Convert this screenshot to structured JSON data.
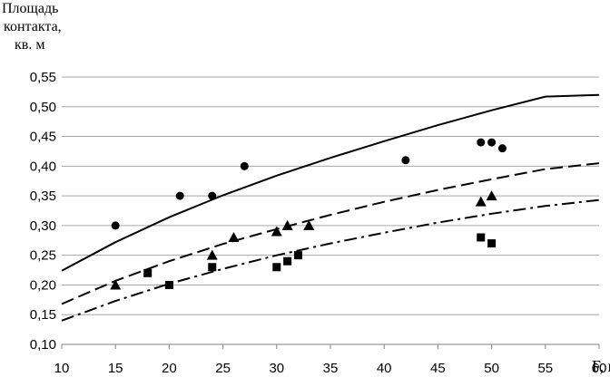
{
  "chart_data": {
    "type": "scatter",
    "title": "",
    "ylabel_lines": [
      "Площадь",
      "контакта,",
      "кв. м"
    ],
    "xlabel": "F, кН",
    "xlim": [
      10,
      60
    ],
    "ylim": [
      0.1,
      0.55
    ],
    "xticks": [
      "10",
      "15",
      "20",
      "25",
      "30",
      "35",
      "40",
      "45",
      "50",
      "55",
      "60"
    ],
    "yticks": [
      "0,10",
      "0,15",
      "0,20",
      "0,25",
      "0,30",
      "0,35",
      "0,40",
      "0,45",
      "0,50",
      "0,55"
    ],
    "grid": true,
    "series": [
      {
        "marker": "circle",
        "points": [
          [
            15,
            0.3
          ],
          [
            21,
            0.35
          ],
          [
            24,
            0.35
          ],
          [
            27,
            0.4
          ],
          [
            42,
            0.41
          ],
          [
            49,
            0.44
          ],
          [
            50,
            0.44
          ],
          [
            51,
            0.43
          ]
        ]
      },
      {
        "marker": "triangle",
        "points": [
          [
            15,
            0.2
          ],
          [
            24,
            0.25
          ],
          [
            26,
            0.28
          ],
          [
            30,
            0.29
          ],
          [
            31,
            0.3
          ],
          [
            33,
            0.3
          ],
          [
            49,
            0.34
          ],
          [
            50,
            0.35
          ]
        ]
      },
      {
        "marker": "square",
        "points": [
          [
            18,
            0.22
          ],
          [
            20,
            0.2
          ],
          [
            24,
            0.23
          ],
          [
            30,
            0.23
          ],
          [
            31,
            0.24
          ],
          [
            32,
            0.25
          ],
          [
            49,
            0.28
          ],
          [
            50,
            0.27
          ]
        ]
      }
    ],
    "trend_lines": [
      {
        "style": "solid",
        "points": [
          [
            10,
            0.224
          ],
          [
            15,
            0.272
          ],
          [
            20,
            0.314
          ],
          [
            25,
            0.351
          ],
          [
            30,
            0.384
          ],
          [
            35,
            0.414
          ],
          [
            40,
            0.442
          ],
          [
            45,
            0.469
          ],
          [
            50,
            0.494
          ],
          [
            55,
            0.517
          ],
          [
            60,
            0.52
          ]
        ]
      },
      {
        "style": "dashed",
        "points": [
          [
            10,
            0.168
          ],
          [
            15,
            0.207
          ],
          [
            20,
            0.24
          ],
          [
            25,
            0.269
          ],
          [
            30,
            0.294
          ],
          [
            35,
            0.318
          ],
          [
            40,
            0.34
          ],
          [
            45,
            0.36
          ],
          [
            50,
            0.378
          ],
          [
            55,
            0.395
          ],
          [
            60,
            0.405
          ]
        ]
      },
      {
        "style": "dashdot",
        "points": [
          [
            10,
            0.14
          ],
          [
            15,
            0.173
          ],
          [
            20,
            0.202
          ],
          [
            25,
            0.227
          ],
          [
            30,
            0.25
          ],
          [
            35,
            0.27
          ],
          [
            40,
            0.288
          ],
          [
            45,
            0.305
          ],
          [
            50,
            0.32
          ],
          [
            55,
            0.333
          ],
          [
            60,
            0.343
          ]
        ]
      }
    ]
  }
}
